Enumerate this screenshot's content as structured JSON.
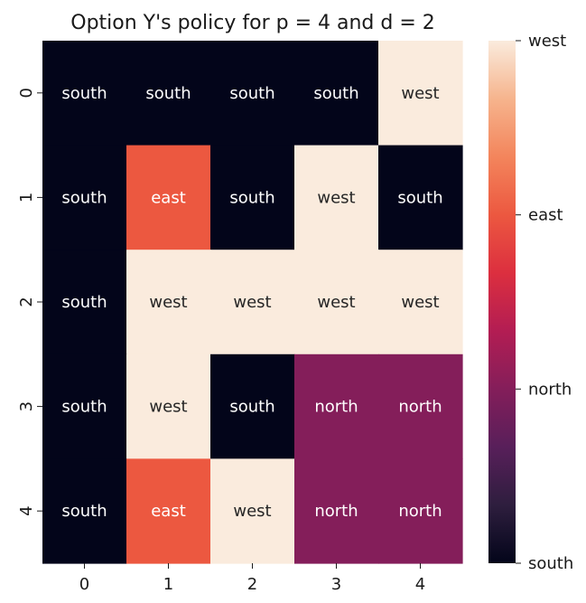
{
  "chart_data": {
    "type": "heatmap",
    "title": "Option Y's policy for p = 4 and d = 2",
    "xlabel": "",
    "ylabel": "",
    "x_tick_labels": [
      "0",
      "1",
      "2",
      "3",
      "4"
    ],
    "y_tick_labels": [
      "0",
      "1",
      "2",
      "3",
      "4"
    ],
    "values": [
      [
        "south",
        "south",
        "south",
        "south",
        "west"
      ],
      [
        "south",
        "east",
        "south",
        "west",
        "south"
      ],
      [
        "south",
        "west",
        "west",
        "west",
        "west"
      ],
      [
        "south",
        "west",
        "south",
        "north",
        "north"
      ],
      [
        "south",
        "east",
        "west",
        "north",
        "north"
      ]
    ],
    "colorbar": {
      "labels": [
        "south",
        "north",
        "east",
        "west"
      ],
      "values": [
        0,
        1,
        2,
        3
      ],
      "colors": {
        "south": "#03051a",
        "north": "#841e5a",
        "east": "#ec5840",
        "west": "#faebdd"
      },
      "gradient_stops": [
        "#03051a",
        "#2e1e3e",
        "#581f5a",
        "#841e5a",
        "#b31d53",
        "#dc2f3f",
        "#ec5840",
        "#f3855c",
        "#f6b48d",
        "#faebdd"
      ]
    },
    "text_colors": {
      "dark_bg": "#ffffff",
      "light_bg": "#262626"
    },
    "grid": false,
    "legend": "colorbar-right"
  }
}
